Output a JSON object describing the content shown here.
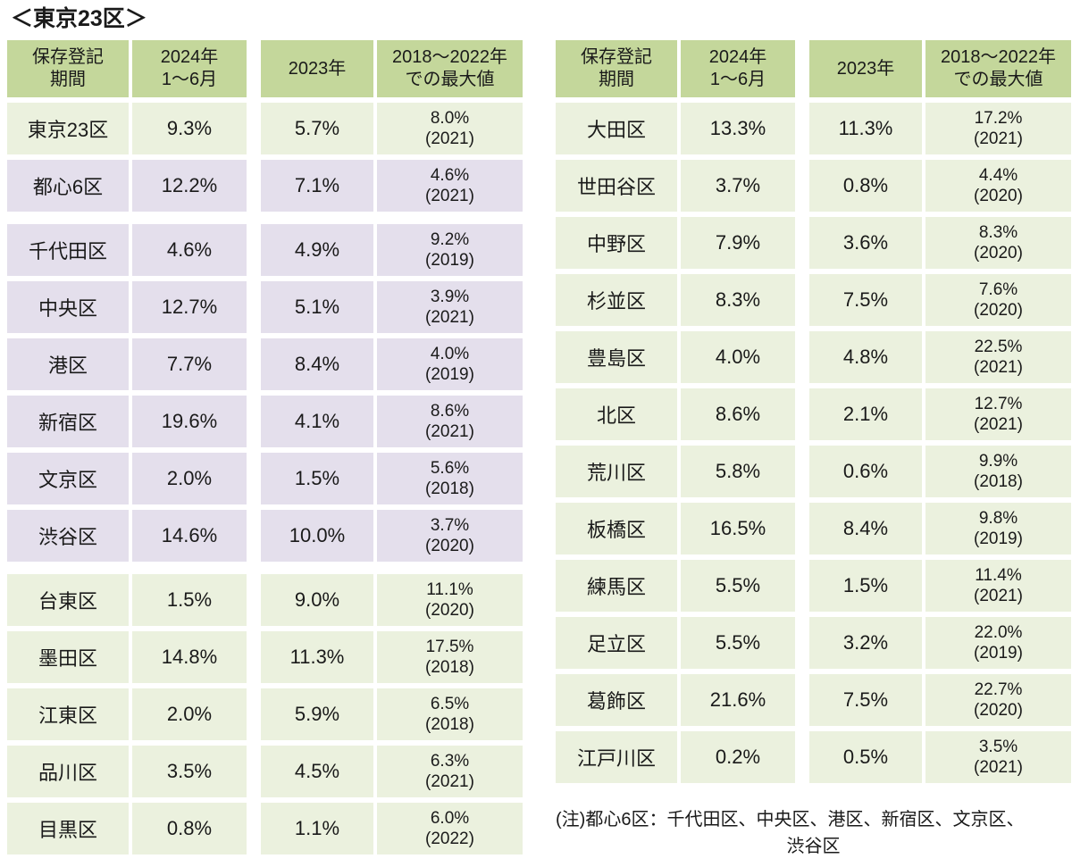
{
  "title": "＜東京23区＞",
  "colors": {
    "header_bg": "#c4d79b",
    "row_green": "#ebf1de",
    "row_purple": "#e4dfec",
    "text": "#1a1a1a",
    "background": "#ffffff"
  },
  "header": {
    "col1_line1": "保存登記",
    "col1_line2": "期間",
    "col2_line1": "2024年",
    "col2_line2": "1～6月",
    "col3": "2023年",
    "col4_line1": "2018～2022年",
    "col4_line2": "での最大値"
  },
  "left_table": {
    "rows": [
      {
        "name": "東京23区",
        "v2024": "9.3%",
        "v2023": "5.7%",
        "max": "8.0%",
        "max_year": "(2021)",
        "theme": "green",
        "big_gap_after": false
      },
      {
        "name": "都心6区",
        "v2024": "12.2%",
        "v2023": "7.1%",
        "max": "4.6%",
        "max_year": "(2021)",
        "theme": "purple",
        "big_gap_after": true
      },
      {
        "name": "千代田区",
        "v2024": "4.6%",
        "v2023": "4.9%",
        "max": "9.2%",
        "max_year": "(2019)",
        "theme": "purple",
        "big_gap_after": false
      },
      {
        "name": "中央区",
        "v2024": "12.7%",
        "v2023": "5.1%",
        "max": "3.9%",
        "max_year": "(2021)",
        "theme": "purple",
        "big_gap_after": false
      },
      {
        "name": "港区",
        "v2024": "7.7%",
        "v2023": "8.4%",
        "max": "4.0%",
        "max_year": "(2019)",
        "theme": "purple",
        "big_gap_after": false
      },
      {
        "name": "新宿区",
        "v2024": "19.6%",
        "v2023": "4.1%",
        "max": "8.6%",
        "max_year": "(2021)",
        "theme": "purple",
        "big_gap_after": false
      },
      {
        "name": "文京区",
        "v2024": "2.0%",
        "v2023": "1.5%",
        "max": "5.6%",
        "max_year": "(2018)",
        "theme": "purple",
        "big_gap_after": false
      },
      {
        "name": "渋谷区",
        "v2024": "14.6%",
        "v2023": "10.0%",
        "max": "3.7%",
        "max_year": "(2020)",
        "theme": "purple",
        "big_gap_after": true
      },
      {
        "name": "台東区",
        "v2024": "1.5%",
        "v2023": "9.0%",
        "max": "11.1%",
        "max_year": "(2020)",
        "theme": "green",
        "big_gap_after": false
      },
      {
        "name": "墨田区",
        "v2024": "14.8%",
        "v2023": "11.3%",
        "max": "17.5%",
        "max_year": "(2018)",
        "theme": "green",
        "big_gap_after": false
      },
      {
        "name": "江東区",
        "v2024": "2.0%",
        "v2023": "5.9%",
        "max": "6.5%",
        "max_year": "(2018)",
        "theme": "green",
        "big_gap_after": false
      },
      {
        "name": "品川区",
        "v2024": "3.5%",
        "v2023": "4.5%",
        "max": "6.3%",
        "max_year": "(2021)",
        "theme": "green",
        "big_gap_after": false
      },
      {
        "name": "目黒区",
        "v2024": "0.8%",
        "v2023": "1.1%",
        "max": "6.0%",
        "max_year": "(2022)",
        "theme": "green",
        "big_gap_after": false
      }
    ]
  },
  "right_table": {
    "rows": [
      {
        "name": "大田区",
        "v2024": "13.3%",
        "v2023": "11.3%",
        "max": "17.2%",
        "max_year": "(2021)",
        "theme": "green",
        "big_gap_after": false
      },
      {
        "name": "世田谷区",
        "v2024": "3.7%",
        "v2023": "0.8%",
        "max": "4.4%",
        "max_year": "(2020)",
        "theme": "green",
        "big_gap_after": false
      },
      {
        "name": "中野区",
        "v2024": "7.9%",
        "v2023": "3.6%",
        "max": "8.3%",
        "max_year": "(2020)",
        "theme": "green",
        "big_gap_after": false
      },
      {
        "name": "杉並区",
        "v2024": "8.3%",
        "v2023": "7.5%",
        "max": "7.6%",
        "max_year": "(2020)",
        "theme": "green",
        "big_gap_after": false
      },
      {
        "name": "豊島区",
        "v2024": "4.0%",
        "v2023": "4.8%",
        "max": "22.5%",
        "max_year": "(2021)",
        "theme": "green",
        "big_gap_after": false
      },
      {
        "name": "北区",
        "v2024": "8.6%",
        "v2023": "2.1%",
        "max": "12.7%",
        "max_year": "(2021)",
        "theme": "green",
        "big_gap_after": false
      },
      {
        "name": "荒川区",
        "v2024": "5.8%",
        "v2023": "0.6%",
        "max": "9.9%",
        "max_year": "(2018)",
        "theme": "green",
        "big_gap_after": false
      },
      {
        "name": "板橋区",
        "v2024": "16.5%",
        "v2023": "8.4%",
        "max": "9.8%",
        "max_year": "(2019)",
        "theme": "green",
        "big_gap_after": false
      },
      {
        "name": "練馬区",
        "v2024": "5.5%",
        "v2023": "1.5%",
        "max": "11.4%",
        "max_year": "(2021)",
        "theme": "green",
        "big_gap_after": false
      },
      {
        "name": "足立区",
        "v2024": "5.5%",
        "v2023": "3.2%",
        "max": "22.0%",
        "max_year": "(2019)",
        "theme": "green",
        "big_gap_after": false
      },
      {
        "name": "葛飾区",
        "v2024": "21.6%",
        "v2023": "7.5%",
        "max": "22.7%",
        "max_year": "(2020)",
        "theme": "green",
        "big_gap_after": false
      },
      {
        "name": "江戸川区",
        "v2024": "0.2%",
        "v2023": "0.5%",
        "max": "3.5%",
        "max_year": "(2021)",
        "theme": "green",
        "big_gap_after": false
      }
    ]
  },
  "note": {
    "line1": "(注)都心6区：千代田区、中央区、港区、新宿区、文京区、",
    "line2": "渋谷区"
  }
}
